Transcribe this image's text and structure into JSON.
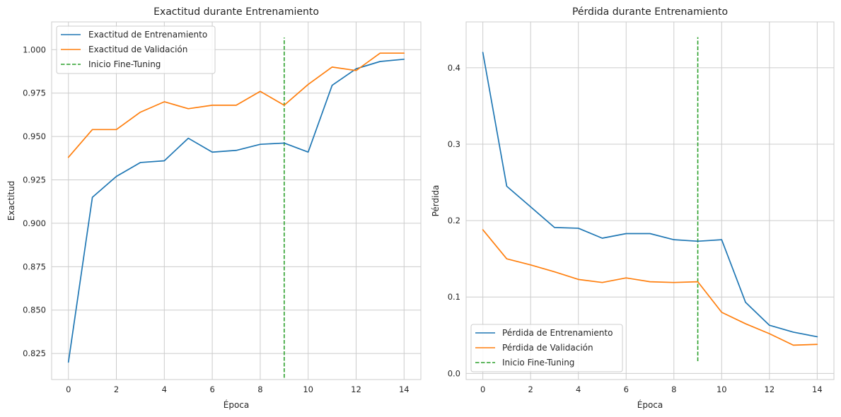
{
  "chart_data": [
    {
      "type": "line",
      "title": "Exactitud durante Entrenamiento",
      "xlabel": "Época",
      "ylabel": "Exactitud",
      "xlim": [
        -0.7,
        14.7
      ],
      "ylim": [
        0.81,
        1.016
      ],
      "xticks": [
        0,
        2,
        4,
        6,
        8,
        10,
        12,
        14
      ],
      "yticks": [
        0.825,
        0.85,
        0.875,
        0.9,
        0.925,
        0.95,
        0.975,
        1.0
      ],
      "ytick_labels": [
        "0.825",
        "0.850",
        "0.875",
        "0.900",
        "0.925",
        "0.950",
        "0.975",
        "1.000"
      ],
      "grid": true,
      "legend_position": "upper-left",
      "x": [
        0,
        1,
        2,
        3,
        4,
        5,
        6,
        7,
        8,
        9,
        10,
        11,
        12,
        13,
        14
      ],
      "series": [
        {
          "name": "Exactitud de Entrenamiento",
          "color": "#1f77b4",
          "values": [
            0.82,
            0.915,
            0.927,
            0.935,
            0.936,
            0.949,
            0.941,
            0.942,
            0.9455,
            0.9462,
            0.941,
            0.9795,
            0.989,
            0.9932,
            0.9945
          ]
        },
        {
          "name": "Exactitud de Validación",
          "color": "#ff7f0e",
          "values": [
            0.938,
            0.954,
            0.954,
            0.964,
            0.97,
            0.966,
            0.968,
            0.968,
            0.976,
            0.968,
            0.98,
            0.99,
            0.988,
            0.998,
            0.998
          ]
        }
      ],
      "vline": {
        "name": "Inicio Fine-Tuning",
        "x": 9,
        "y_range": [
          0.811,
          1.007
        ],
        "color": "#2ca02c",
        "style": "dashed"
      }
    },
    {
      "type": "line",
      "title": "Pérdida durante Entrenamiento",
      "xlabel": "Época",
      "ylabel": "Pérdida",
      "xlim": [
        -0.7,
        14.7
      ],
      "ylim": [
        -0.008,
        0.46
      ],
      "xticks": [
        0,
        2,
        4,
        6,
        8,
        10,
        12,
        14
      ],
      "yticks": [
        0.0,
        0.1,
        0.2,
        0.3,
        0.4
      ],
      "ytick_labels": [
        "0.0",
        "0.1",
        "0.2",
        "0.3",
        "0.4"
      ],
      "grid": true,
      "legend_position": "lower-left",
      "x": [
        0,
        1,
        2,
        3,
        4,
        5,
        6,
        7,
        8,
        9,
        10,
        11,
        12,
        13,
        14
      ],
      "series": [
        {
          "name": "Pérdida de Entrenamiento",
          "color": "#1f77b4",
          "values": [
            0.42,
            0.245,
            0.218,
            0.191,
            0.19,
            0.177,
            0.183,
            0.183,
            0.175,
            0.173,
            0.175,
            0.093,
            0.063,
            0.054,
            0.048
          ]
        },
        {
          "name": "Pérdida de Validación",
          "color": "#ff7f0e",
          "values": [
            0.188,
            0.15,
            0.142,
            0.133,
            0.123,
            0.119,
            0.125,
            0.12,
            0.119,
            0.12,
            0.08,
            0.065,
            0.052,
            0.037,
            0.038
          ]
        }
      ],
      "vline": {
        "name": "Inicio Fine-Tuning",
        "x": 9,
        "y_range": [
          0.016,
          0.44
        ],
        "color": "#2ca02c",
        "style": "dashed"
      }
    }
  ]
}
